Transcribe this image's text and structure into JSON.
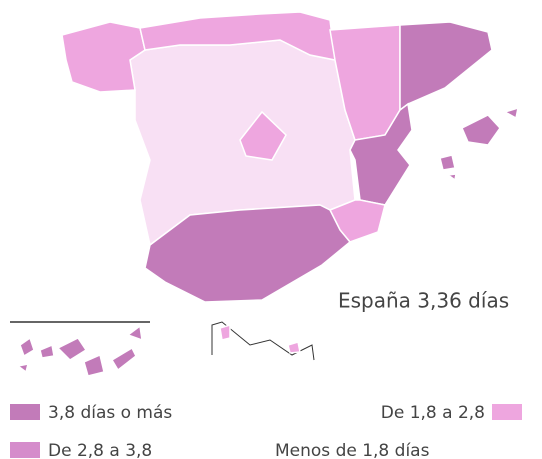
{
  "summary": "España 3,36 días",
  "legend": [
    {
      "label": "3,8 días o más",
      "color": "#c27bb9"
    },
    {
      "label": "De 2,8 a 3,8",
      "color": "#d58ccb"
    },
    {
      "label": "De 1,8 a 2,8",
      "color": "#eea6df"
    },
    {
      "label": "Menos de 1,8 días",
      "color": "#f8e0f4"
    }
  ]
}
